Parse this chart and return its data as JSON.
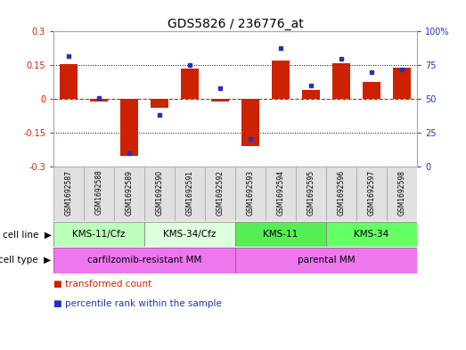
{
  "title": "GDS5826 / 236776_at",
  "samples": [
    "GSM1692587",
    "GSM1692588",
    "GSM1692589",
    "GSM1692590",
    "GSM1692591",
    "GSM1692592",
    "GSM1692593",
    "GSM1692594",
    "GSM1692595",
    "GSM1692596",
    "GSM1692597",
    "GSM1692598"
  ],
  "transformed_count": [
    0.155,
    -0.01,
    -0.255,
    -0.04,
    0.135,
    -0.01,
    -0.21,
    0.17,
    0.04,
    0.16,
    0.075,
    0.14
  ],
  "percentile_rank": [
    82,
    51,
    10,
    38,
    75,
    58,
    20,
    88,
    60,
    80,
    70,
    72
  ],
  "ylim_left": [
    -0.3,
    0.3
  ],
  "ylim_right": [
    0,
    100
  ],
  "yticks_left": [
    -0.3,
    -0.15,
    0,
    0.15,
    0.3
  ],
  "yticks_right": [
    0,
    25,
    50,
    75,
    100
  ],
  "ytick_labels_left": [
    "-0.3",
    "-0.15",
    "0",
    "0.15",
    "0.3"
  ],
  "ytick_labels_right": [
    "0",
    "25",
    "50",
    "75",
    "100%"
  ],
  "hlines_dotted": [
    -0.15,
    0.15
  ],
  "hline_zero": 0.0,
  "bar_color": "#CC2200",
  "dot_color": "#2233BB",
  "cell_line_groups": [
    {
      "label": "KMS-11/Cfz",
      "start": 0,
      "end": 3,
      "color": "#BBFFBB"
    },
    {
      "label": "KMS-34/Cfz",
      "start": 3,
      "end": 6,
      "color": "#DDFFDD"
    },
    {
      "label": "KMS-11",
      "start": 6,
      "end": 9,
      "color": "#55EE55"
    },
    {
      "label": "KMS-34",
      "start": 9,
      "end": 12,
      "color": "#66FF66"
    }
  ],
  "cell_type_groups": [
    {
      "label": "carfilzomib-resistant MM",
      "start": 0,
      "end": 6,
      "color": "#EE77EE"
    },
    {
      "label": "parental MM",
      "start": 6,
      "end": 12,
      "color": "#EE77EE"
    }
  ],
  "legend_items": [
    {
      "label": "transformed count",
      "color": "#CC2200"
    },
    {
      "label": "percentile rank within the sample",
      "color": "#2233BB"
    }
  ],
  "bg_color": "#FFFFFF",
  "title_fontsize": 10,
  "tick_fontsize": 7,
  "annot_fontsize": 7.5,
  "sample_fontsize": 5.5
}
